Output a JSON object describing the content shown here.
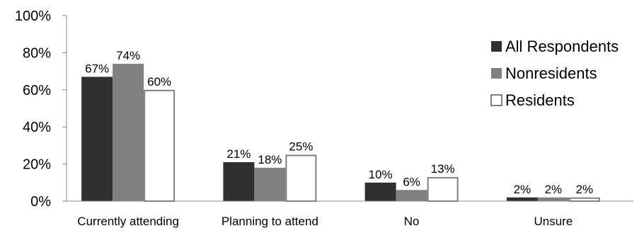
{
  "chart_data": {
    "type": "bar",
    "categories": [
      "Currently attending",
      "Planning to attend",
      "No",
      "Unsure"
    ],
    "series": [
      {
        "name": "All Respondents",
        "values": [
          67,
          21,
          10,
          2
        ],
        "color": "#303030",
        "labels": [
          "67%",
          "21%",
          "10%",
          "2%"
        ]
      },
      {
        "name": "Nonresidents",
        "values": [
          74,
          18,
          6,
          2
        ],
        "color": "#808080",
        "labels": [
          "74%",
          "18%",
          "6%",
          "2%"
        ]
      },
      {
        "name": "Residents",
        "values": [
          60,
          25,
          13,
          2
        ],
        "color": "#ffffff",
        "stroke": "#808080",
        "labels": [
          "60%",
          "25%",
          "13%",
          "2%"
        ]
      }
    ],
    "y_ticks": [
      "0%",
      "20%",
      "40%",
      "60%",
      "80%",
      "100%"
    ],
    "ylim": [
      0,
      100
    ],
    "legend_position": "right",
    "grid": false
  }
}
